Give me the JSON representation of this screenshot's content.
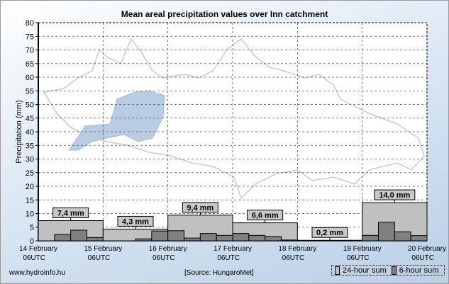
{
  "chart_data": {
    "type": "bar",
    "title": "Mean areal precipitation values over Inn catchment",
    "ylabel": "Precipitation (mm)",
    "xlabel": "",
    "ylim": [
      0,
      80
    ],
    "yticks": [
      0,
      5,
      10,
      15,
      20,
      25,
      30,
      35,
      40,
      45,
      50,
      55,
      60,
      65,
      70,
      75,
      80
    ],
    "grid": true,
    "x_ticks": [
      {
        "date": "14 February",
        "time": "06UTC"
      },
      {
        "date": "15 February",
        "time": "06UTC"
      },
      {
        "date": "16 February",
        "time": "06UTC"
      },
      {
        "date": "17 February",
        "time": "06UTC"
      },
      {
        "date": "18 February",
        "time": "06UTC"
      },
      {
        "date": "19 February",
        "time": "06UTC"
      },
      {
        "date": "20 February",
        "time": "06UTC"
      }
    ],
    "series": [
      {
        "name": "24-hour sum",
        "color": "#c0c0c0",
        "values": [
          7.4,
          4.3,
          9.4,
          6.6,
          0.2,
          14.0
        ],
        "labels": [
          "7,4 mm",
          "4,3 mm",
          "9,4 mm",
          "6,6 mm",
          "0,2 mm",
          "14,0 mm"
        ]
      },
      {
        "name": "6-hour sum",
        "color": "#808080",
        "values": [
          0,
          2.3,
          3.9,
          1.2,
          0,
          0,
          0.7,
          3.6,
          3.7,
          1.0,
          2.7,
          2.0,
          2.7,
          2.0,
          1.6,
          0.3,
          0,
          0,
          0.1,
          0.1,
          2.0,
          6.8,
          3.3,
          1.9
        ]
      }
    ],
    "legend_position": "bottom-right"
  },
  "footer": {
    "website": "www.hydroinfo.hu",
    "source": "[Source: HungaroMet]"
  }
}
